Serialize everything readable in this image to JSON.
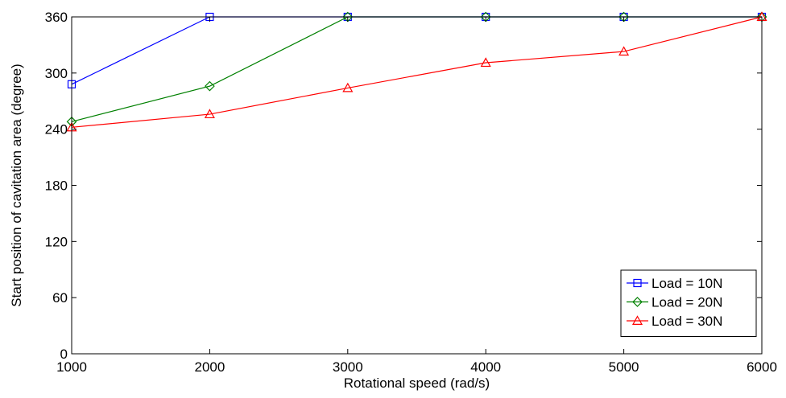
{
  "chart_data": {
    "type": "line",
    "title": "",
    "xlabel": "Rotational speed (rad/s)",
    "ylabel": "Start position of cavitation area (degree)",
    "xlim": [
      1000,
      6000
    ],
    "ylim": [
      0,
      360
    ],
    "xticks": [
      1000,
      2000,
      3000,
      4000,
      5000,
      6000
    ],
    "yticks": [
      0,
      60,
      120,
      180,
      240,
      300,
      360
    ],
    "grid": false,
    "legend_position": "bottom-right",
    "series": [
      {
        "name": "Load = 10N",
        "color": "#0000ff",
        "marker": "square",
        "x": [
          1000,
          2000,
          3000,
          4000,
          5000,
          6000
        ],
        "y": [
          288,
          360,
          360,
          360,
          360,
          360
        ]
      },
      {
        "name": "Load = 20N",
        "color": "#008000",
        "marker": "diamond",
        "x": [
          1000,
          2000,
          3000,
          4000,
          5000,
          6000
        ],
        "y": [
          248,
          286,
          360,
          360,
          360,
          360
        ]
      },
      {
        "name": "Load = 30N",
        "color": "#ff0000",
        "marker": "triangle",
        "x": [
          1000,
          2000,
          3000,
          4000,
          5000,
          6000
        ],
        "y": [
          242,
          256,
          284,
          311,
          323,
          360
        ]
      }
    ]
  }
}
